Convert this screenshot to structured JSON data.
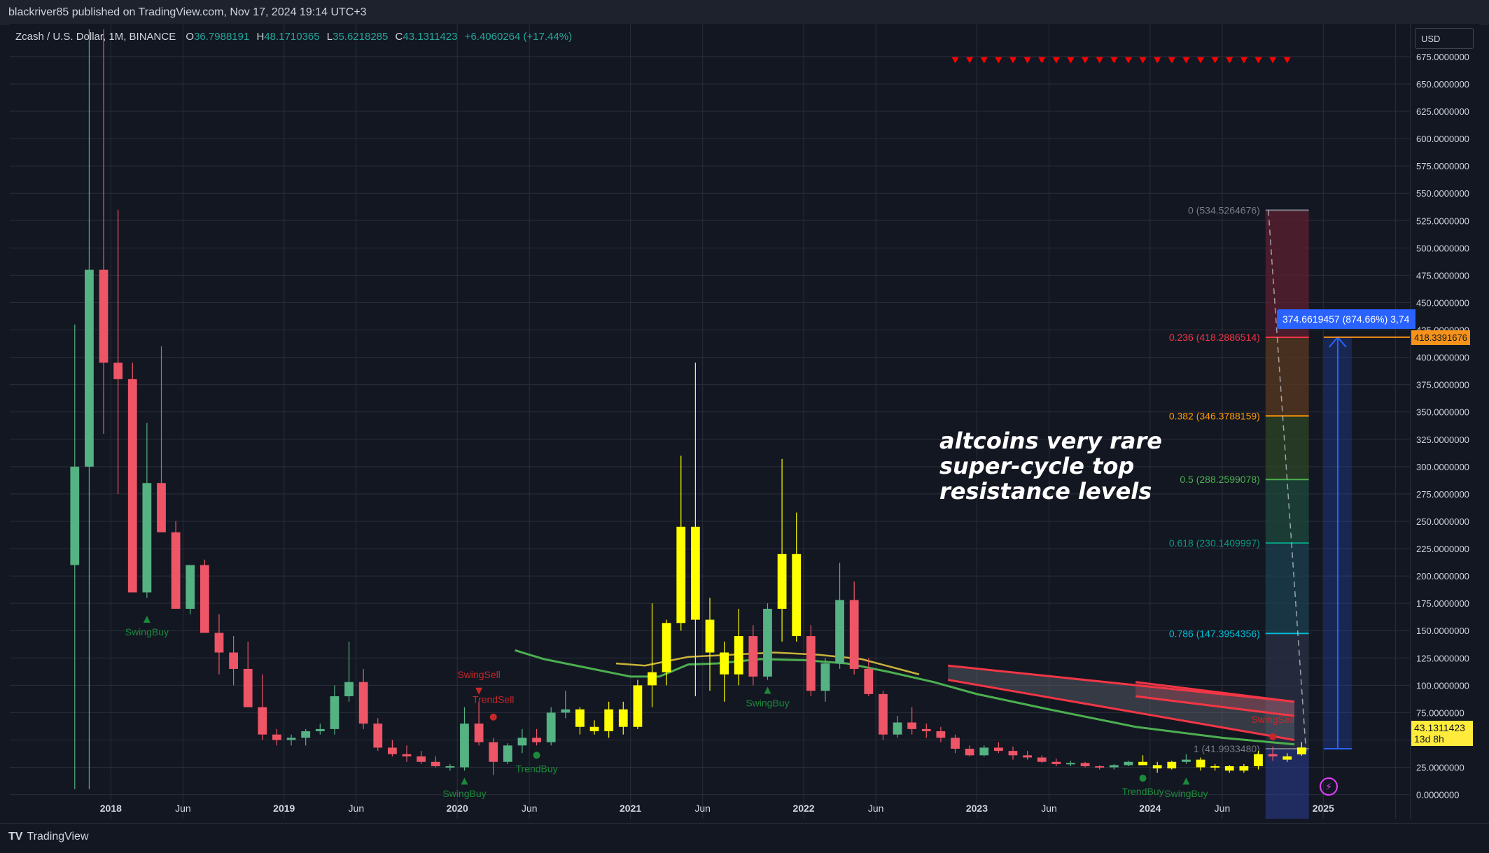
{
  "header": {
    "published": "blackriver85 published on TradingView.com, Nov 17, 2024 19:14 UTC+3"
  },
  "legend": {
    "symbol": "Zcash / U.S. Dollar, 1M, BINANCE",
    "o_label": "O",
    "o_value": "36.7988191",
    "h_label": "H",
    "h_value": "48.1710365",
    "l_label": "L",
    "l_value": "35.6218285",
    "c_label": "C",
    "c_value": "43.1311423",
    "change": "+6.4060264 (+17.44%)"
  },
  "axis": {
    "currency": "USD",
    "price_ticks": [
      "675.0000000",
      "650.0000000",
      "625.0000000",
      "600.0000000",
      "575.0000000",
      "550.0000000",
      "525.0000000",
      "500.0000000",
      "475.0000000",
      "450.0000000",
      "425.0000000",
      "400.0000000",
      "375.0000000",
      "350.0000000",
      "325.0000000",
      "300.0000000",
      "275.0000000",
      "250.0000000",
      "225.0000000",
      "200.0000000",
      "175.0000000",
      "150.0000000",
      "125.0000000",
      "100.0000000",
      "75.0000000",
      "50.0000000",
      "25.0000000",
      "0.0000000"
    ],
    "time_labels": [
      "2018",
      "Jun",
      "2019",
      "Jun",
      "2020",
      "Jun",
      "2021",
      "Jun",
      "2022",
      "Jun",
      "2023",
      "Jun",
      "2024",
      "Jun",
      "2025"
    ]
  },
  "annotation": {
    "text": "altcoins very rare\nsuper-cycle top\nresistance levels"
  },
  "flags": {
    "measure": "374.6619457 (874.66%) 3,74",
    "fib_top": "418.3391676",
    "current_price": "43.1311423",
    "countdown": "13d 8h"
  },
  "footer": {
    "brand": "TradingView"
  },
  "colors": {
    "up": "#55b283",
    "down": "#ee5566",
    "yellow": "#ffff00",
    "bg": "#131722",
    "grid": "#2a2e39",
    "ma_green": "#4caf50",
    "ma_yellow": "#c9b23a"
  },
  "chart_data": {
    "type": "candlestick",
    "title": "Zcash / U.S. Dollar, 1M, BINANCE",
    "ylim": [
      -22,
      705
    ],
    "x_range": [
      "2017-06",
      "2025-07"
    ],
    "candles": [
      {
        "t": "2017-10",
        "o": 210,
        "h": 430,
        "l": 5,
        "c": 300,
        "col": "up"
      },
      {
        "t": "2017-11",
        "o": 300,
        "h": 700,
        "l": 5,
        "c": 480,
        "col": "up"
      },
      {
        "t": "2017-12",
        "o": 480,
        "h": 700,
        "l": 330,
        "c": 395,
        "col": "down"
      },
      {
        "t": "2018-01",
        "o": 395,
        "h": 535,
        "l": 275,
        "c": 380,
        "col": "down"
      },
      {
        "t": "2018-02",
        "o": 380,
        "h": 395,
        "l": 185,
        "c": 185,
        "col": "down"
      },
      {
        "t": "2018-03",
        "o": 185,
        "h": 340,
        "l": 180,
        "c": 285,
        "col": "up"
      },
      {
        "t": "2018-04",
        "o": 285,
        "h": 410,
        "l": 240,
        "c": 240,
        "col": "down"
      },
      {
        "t": "2018-05",
        "o": 240,
        "h": 250,
        "l": 170,
        "c": 170,
        "col": "down"
      },
      {
        "t": "2018-06",
        "o": 170,
        "h": 210,
        "l": 165,
        "c": 210,
        "col": "up"
      },
      {
        "t": "2018-07",
        "o": 210,
        "h": 215,
        "l": 148,
        "c": 148,
        "col": "down"
      },
      {
        "t": "2018-08",
        "o": 148,
        "h": 165,
        "l": 110,
        "c": 130,
        "col": "down"
      },
      {
        "t": "2018-09",
        "o": 130,
        "h": 145,
        "l": 100,
        "c": 115,
        "col": "down"
      },
      {
        "t": "2018-10",
        "o": 115,
        "h": 140,
        "l": 80,
        "c": 80,
        "col": "down"
      },
      {
        "t": "2018-11",
        "o": 80,
        "h": 110,
        "l": 50,
        "c": 55,
        "col": "down"
      },
      {
        "t": "2018-12",
        "o": 55,
        "h": 60,
        "l": 45,
        "c": 50,
        "col": "down"
      },
      {
        "t": "2019-01",
        "o": 50,
        "h": 55,
        "l": 45,
        "c": 52,
        "col": "up"
      },
      {
        "t": "2019-02",
        "o": 52,
        "h": 60,
        "l": 45,
        "c": 58,
        "col": "up"
      },
      {
        "t": "2019-03",
        "o": 58,
        "h": 65,
        "l": 55,
        "c": 60,
        "col": "up"
      },
      {
        "t": "2019-04",
        "o": 60,
        "h": 100,
        "l": 55,
        "c": 90,
        "col": "up"
      },
      {
        "t": "2019-05",
        "o": 90,
        "h": 140,
        "l": 85,
        "c": 103,
        "col": "up"
      },
      {
        "t": "2019-06",
        "o": 103,
        "h": 115,
        "l": 60,
        "c": 65,
        "col": "down"
      },
      {
        "t": "2019-07",
        "o": 65,
        "h": 70,
        "l": 40,
        "c": 43,
        "col": "down"
      },
      {
        "t": "2019-08",
        "o": 43,
        "h": 50,
        "l": 35,
        "c": 37,
        "col": "down"
      },
      {
        "t": "2019-09",
        "o": 37,
        "h": 45,
        "l": 30,
        "c": 35,
        "col": "down"
      },
      {
        "t": "2019-10",
        "o": 35,
        "h": 40,
        "l": 28,
        "c": 30,
        "col": "down"
      },
      {
        "t": "2019-11",
        "o": 30,
        "h": 35,
        "l": 25,
        "c": 26,
        "col": "down"
      },
      {
        "t": "2019-12",
        "o": 26,
        "h": 28,
        "l": 22,
        "c": 25,
        "col": "up"
      },
      {
        "t": "2020-01",
        "o": 25,
        "h": 80,
        "l": 22,
        "c": 65,
        "col": "up"
      },
      {
        "t": "2020-02",
        "o": 65,
        "h": 85,
        "l": 45,
        "c": 48,
        "col": "down"
      },
      {
        "t": "2020-03",
        "o": 48,
        "h": 52,
        "l": 18,
        "c": 30,
        "col": "down"
      },
      {
        "t": "2020-04",
        "o": 30,
        "h": 47,
        "l": 28,
        "c": 45,
        "col": "up"
      },
      {
        "t": "2020-05",
        "o": 45,
        "h": 60,
        "l": 38,
        "c": 52,
        "col": "up"
      },
      {
        "t": "2020-06",
        "o": 52,
        "h": 60,
        "l": 45,
        "c": 48,
        "col": "down"
      },
      {
        "t": "2020-07",
        "o": 48,
        "h": 80,
        "l": 45,
        "c": 75,
        "col": "up"
      },
      {
        "t": "2020-08",
        "o": 75,
        "h": 95,
        "l": 70,
        "c": 78,
        "col": "up"
      },
      {
        "t": "2020-09",
        "o": 78,
        "h": 80,
        "l": 55,
        "c": 62,
        "col": "yellow"
      },
      {
        "t": "2020-10",
        "o": 62,
        "h": 68,
        "l": 55,
        "c": 58,
        "col": "yellow"
      },
      {
        "t": "2020-11",
        "o": 58,
        "h": 85,
        "l": 52,
        "c": 78,
        "col": "yellow"
      },
      {
        "t": "2020-12",
        "o": 78,
        "h": 85,
        "l": 55,
        "c": 62,
        "col": "yellow"
      },
      {
        "t": "2021-01",
        "o": 62,
        "h": 105,
        "l": 60,
        "c": 100,
        "col": "yellow"
      },
      {
        "t": "2021-02",
        "o": 100,
        "h": 175,
        "l": 80,
        "c": 112,
        "col": "yellow"
      },
      {
        "t": "2021-03",
        "o": 112,
        "h": 160,
        "l": 100,
        "c": 157,
        "col": "yellow"
      },
      {
        "t": "2021-04",
        "o": 157,
        "h": 310,
        "l": 150,
        "c": 245,
        "col": "yellow"
      },
      {
        "t": "2021-05",
        "o": 245,
        "h": 395,
        "l": 90,
        "c": 160,
        "col": "yellow"
      },
      {
        "t": "2021-06",
        "o": 160,
        "h": 180,
        "l": 95,
        "c": 130,
        "col": "yellow"
      },
      {
        "t": "2021-07",
        "o": 130,
        "h": 140,
        "l": 85,
        "c": 110,
        "col": "yellow"
      },
      {
        "t": "2021-08",
        "o": 110,
        "h": 170,
        "l": 100,
        "c": 145,
        "col": "yellow"
      },
      {
        "t": "2021-09",
        "o": 145,
        "h": 155,
        "l": 100,
        "c": 108,
        "col": "down"
      },
      {
        "t": "2021-10",
        "o": 108,
        "h": 175,
        "l": 105,
        "c": 170,
        "col": "up"
      },
      {
        "t": "2021-11",
        "o": 170,
        "h": 307,
        "l": 140,
        "c": 220,
        "col": "yellow"
      },
      {
        "t": "2021-12",
        "o": 220,
        "h": 258,
        "l": 140,
        "c": 145,
        "col": "yellow"
      },
      {
        "t": "2022-01",
        "o": 145,
        "h": 155,
        "l": 90,
        "c": 95,
        "col": "down"
      },
      {
        "t": "2022-02",
        "o": 95,
        "h": 125,
        "l": 85,
        "c": 120,
        "col": "up"
      },
      {
        "t": "2022-03",
        "o": 120,
        "h": 212,
        "l": 115,
        "c": 178,
        "col": "up"
      },
      {
        "t": "2022-04",
        "o": 178,
        "h": 195,
        "l": 110,
        "c": 115,
        "col": "down"
      },
      {
        "t": "2022-05",
        "o": 115,
        "h": 125,
        "l": 90,
        "c": 92,
        "col": "down"
      },
      {
        "t": "2022-06",
        "o": 92,
        "h": 95,
        "l": 50,
        "c": 55,
        "col": "down"
      },
      {
        "t": "2022-07",
        "o": 55,
        "h": 72,
        "l": 52,
        "c": 66,
        "col": "up"
      },
      {
        "t": "2022-08",
        "o": 66,
        "h": 80,
        "l": 55,
        "c": 60,
        "col": "down"
      },
      {
        "t": "2022-09",
        "o": 60,
        "h": 65,
        "l": 52,
        "c": 58,
        "col": "down"
      },
      {
        "t": "2022-10",
        "o": 58,
        "h": 62,
        "l": 48,
        "c": 52,
        "col": "down"
      },
      {
        "t": "2022-11",
        "o": 52,
        "h": 55,
        "l": 38,
        "c": 42,
        "col": "down"
      },
      {
        "t": "2022-12",
        "o": 42,
        "h": 45,
        "l": 35,
        "c": 36,
        "col": "down"
      },
      {
        "t": "2023-01",
        "o": 36,
        "h": 45,
        "l": 35,
        "c": 43,
        "col": "up"
      },
      {
        "t": "2023-02",
        "o": 43,
        "h": 48,
        "l": 38,
        "c": 40,
        "col": "down"
      },
      {
        "t": "2023-03",
        "o": 40,
        "h": 44,
        "l": 32,
        "c": 36,
        "col": "down"
      },
      {
        "t": "2023-04",
        "o": 36,
        "h": 40,
        "l": 32,
        "c": 34,
        "col": "down"
      },
      {
        "t": "2023-05",
        "o": 34,
        "h": 36,
        "l": 29,
        "c": 30,
        "col": "down"
      },
      {
        "t": "2023-06",
        "o": 30,
        "h": 33,
        "l": 26,
        "c": 28,
        "col": "down"
      },
      {
        "t": "2023-07",
        "o": 28,
        "h": 31,
        "l": 26,
        "c": 29,
        "col": "up"
      },
      {
        "t": "2023-08",
        "o": 29,
        "h": 30,
        "l": 25,
        "c": 26,
        "col": "down"
      },
      {
        "t": "2023-09",
        "o": 26,
        "h": 27,
        "l": 23,
        "c": 25,
        "col": "down"
      },
      {
        "t": "2023-10",
        "o": 25,
        "h": 28,
        "l": 23,
        "c": 27,
        "col": "up"
      },
      {
        "t": "2023-11",
        "o": 27,
        "h": 31,
        "l": 26,
        "c": 30,
        "col": "up"
      },
      {
        "t": "2023-12",
        "o": 30,
        "h": 36,
        "l": 27,
        "c": 27,
        "col": "yellow"
      },
      {
        "t": "2024-01",
        "o": 27,
        "h": 30,
        "l": 20,
        "c": 24,
        "col": "yellow"
      },
      {
        "t": "2024-02",
        "o": 24,
        "h": 31,
        "l": 23,
        "c": 30,
        "col": "yellow"
      },
      {
        "t": "2024-03",
        "o": 30,
        "h": 37,
        "l": 28,
        "c": 32,
        "col": "up"
      },
      {
        "t": "2024-04",
        "o": 32,
        "h": 34,
        "l": 22,
        "c": 25,
        "col": "yellow"
      },
      {
        "t": "2024-05",
        "o": 25,
        "h": 28,
        "l": 22,
        "c": 26,
        "col": "yellow"
      },
      {
        "t": "2024-06",
        "o": 26,
        "h": 27,
        "l": 20,
        "c": 22,
        "col": "yellow"
      },
      {
        "t": "2024-07",
        "o": 22,
        "h": 28,
        "l": 20,
        "c": 26,
        "col": "yellow"
      },
      {
        "t": "2024-08",
        "o": 26,
        "h": 40,
        "l": 23,
        "c": 37,
        "col": "yellow"
      },
      {
        "t": "2024-09",
        "o": 37,
        "h": 44,
        "l": 31,
        "c": 35,
        "col": "down"
      },
      {
        "t": "2024-10",
        "o": 35,
        "h": 38,
        "l": 30,
        "c": 32,
        "col": "yellow"
      },
      {
        "t": "2024-11",
        "o": 36.7988191,
        "h": 48.1710365,
        "l": 35.6218285,
        "c": 43.1311423,
        "col": "yellow"
      }
    ],
    "ma_green": [
      {
        "t": "2020-05",
        "v": 132
      },
      {
        "t": "2020-07",
        "v": 124
      },
      {
        "t": "2020-10",
        "v": 116
      },
      {
        "t": "2021-01",
        "v": 108
      },
      {
        "t": "2021-03",
        "v": 108
      },
      {
        "t": "2021-05",
        "v": 119
      },
      {
        "t": "2021-07",
        "v": 120
      },
      {
        "t": "2021-10",
        "v": 124
      },
      {
        "t": "2022-01",
        "v": 123
      },
      {
        "t": "2022-04",
        "v": 120
      },
      {
        "t": "2022-07",
        "v": 112
      },
      {
        "t": "2022-10",
        "v": 103
      },
      {
        "t": "2023-01",
        "v": 92
      },
      {
        "t": "2023-06",
        "v": 78
      },
      {
        "t": "2023-12",
        "v": 62
      },
      {
        "t": "2024-06",
        "v": 52
      },
      {
        "t": "2024-11",
        "v": 46
      }
    ],
    "ma_yellow": [
      {
        "t": "2020-12",
        "v": 120
      },
      {
        "t": "2021-02",
        "v": 118
      },
      {
        "t": "2021-05",
        "v": 126
      },
      {
        "t": "2021-08",
        "v": 128
      },
      {
        "t": "2021-11",
        "v": 130
      },
      {
        "t": "2022-02",
        "v": 128
      },
      {
        "t": "2022-05",
        "v": 124
      },
      {
        "t": "2022-09",
        "v": 110
      }
    ],
    "channel": {
      "upper": [
        {
          "t": "2022-11",
          "v": 118
        },
        {
          "t": "2024-11",
          "v": 85
        }
      ],
      "lower": [
        {
          "t": "2022-11",
          "v": 105
        },
        {
          "t": "2024-11",
          "v": 50
        }
      ],
      "inner_upper": [
        {
          "t": "2023-12",
          "v": 103
        },
        {
          "t": "2024-11",
          "v": 85
        }
      ],
      "inner_lower": [
        {
          "t": "2023-12",
          "v": 90
        },
        {
          "t": "2024-11",
          "v": 72
        }
      ]
    },
    "fib_levels": [
      {
        "label": "0 (534.5264676)",
        "value": 534.5264676,
        "color": "#787b86"
      },
      {
        "label": "0.236 (418.2886514)",
        "value": 418.2886514,
        "color": "#f23645"
      },
      {
        "label": "0.382 (346.3788159)",
        "value": 346.3788159,
        "color": "#ff9800"
      },
      {
        "label": "0.5 (288.2599078)",
        "value": 288.2599078,
        "color": "#4caf50"
      },
      {
        "label": "0.618 (230.1409997)",
        "value": 230.1409997,
        "color": "#089981"
      },
      {
        "label": "0.786 (147.3954356)",
        "value": 147.3954356,
        "color": "#00bcd4"
      },
      {
        "label": "1 (41.9933480)",
        "value": 41.993348,
        "color": "#787b86"
      }
    ],
    "fib_zone": {
      "t_start": "2024-09",
      "t_end": "2024-12"
    },
    "measure": {
      "t": "2025-02",
      "from": 41.99,
      "to": 418.34
    },
    "marker_row": {
      "t_start": "2022-11",
      "t_end": "2024-10",
      "price": 672
    },
    "signals": [
      {
        "text": "SwingBuy",
        "t": "2018-03",
        "price": 170,
        "kind": "buy",
        "dir": "below"
      },
      {
        "text": "SwingSell",
        "t": "2020-02",
        "price": 85,
        "kind": "sell",
        "dir": "above"
      },
      {
        "text": "TrendSell",
        "t": "2020-03",
        "price": 62,
        "kind": "sell_dot",
        "dir": "above"
      },
      {
        "text": "SwingBuy",
        "t": "2020-01",
        "price": 22,
        "kind": "buy",
        "dir": "below"
      },
      {
        "text": "TrendBuy",
        "t": "2020-06",
        "price": 45,
        "kind": "buy_dot",
        "dir": "below"
      },
      {
        "text": "SwingBuy",
        "t": "2021-10",
        "price": 105,
        "kind": "buy",
        "dir": "below"
      },
      {
        "text": "SwingSell",
        "t": "2024-09",
        "price": 44,
        "kind": "sell_dot",
        "dir": "above"
      },
      {
        "text": "TrendBuy",
        "t": "2023-12",
        "price": 24,
        "kind": "buy_dot",
        "dir": "below"
      },
      {
        "text": "SwingBuy",
        "t": "2024-03",
        "price": 22,
        "kind": "buy",
        "dir": "below"
      }
    ]
  }
}
